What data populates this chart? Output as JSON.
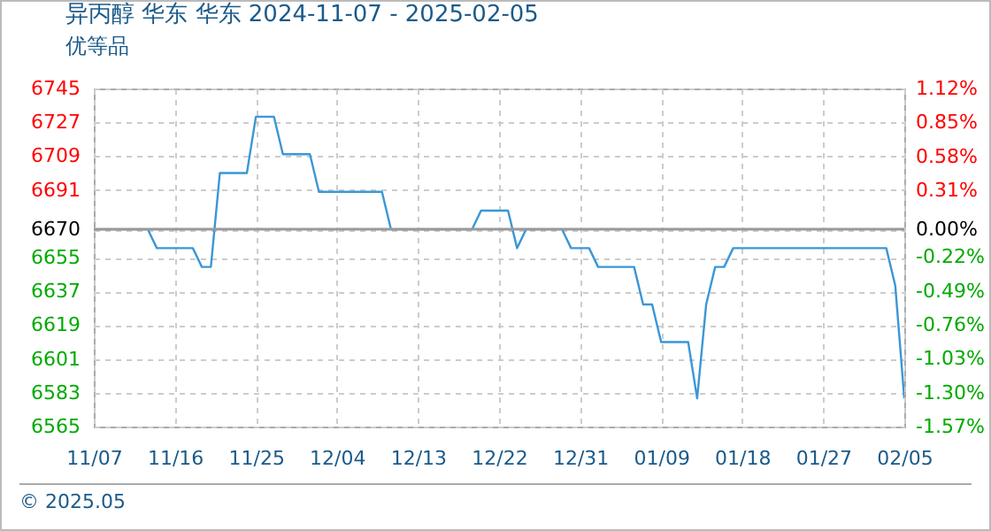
{
  "chart_data": {
    "type": "line",
    "title": "异丙醇 华东 华东 2024-11-07 - 2025-02-05",
    "subtitle": "优等品",
    "x": [
      "2024-11-07",
      "2024-11-13",
      "2024-11-14",
      "2024-11-18",
      "2024-11-19",
      "2024-11-20",
      "2024-11-21",
      "2024-11-24",
      "2024-11-25",
      "2024-11-27",
      "2024-11-28",
      "2024-12-01",
      "2024-12-02",
      "2024-12-09",
      "2024-12-10",
      "2024-12-19",
      "2024-12-20",
      "2024-12-23",
      "2024-12-24",
      "2024-12-25",
      "2024-12-29",
      "2024-12-30",
      "2025-01-01",
      "2025-01-02",
      "2025-01-06",
      "2025-01-07",
      "2025-01-08",
      "2025-01-09",
      "2025-01-12",
      "2025-01-13",
      "2025-01-14",
      "2025-01-15",
      "2025-01-16",
      "2025-01-17",
      "2025-02-03",
      "2025-02-04",
      "2025-02-05"
    ],
    "series": [
      {
        "color": "#3a97d6",
        "values": [
          6670,
          6670,
          6660,
          6660,
          6650,
          6650,
          6700,
          6700,
          6730,
          6730,
          6710,
          6710,
          6690,
          6690,
          6670,
          6670,
          6680,
          6680,
          6660,
          6670,
          6670,
          6660,
          6660,
          6650,
          6650,
          6630,
          6630,
          6610,
          6610,
          6580,
          6630,
          6650,
          6650,
          6660,
          6660,
          6640,
          6580
        ]
      }
    ],
    "xlim": [
      "2024-11-07",
      "2025-02-05"
    ],
    "xticks": [
      {
        "value": "2024-11-07",
        "label": "11/07"
      },
      {
        "value": "2024-11-16",
        "label": "11/16"
      },
      {
        "value": "2024-11-25",
        "label": "11/25"
      },
      {
        "value": "2024-12-04",
        "label": "12/04"
      },
      {
        "value": "2024-12-13",
        "label": "12/13"
      },
      {
        "value": "2024-12-22",
        "label": "12/22"
      },
      {
        "value": "2024-12-31",
        "label": "12/31"
      },
      {
        "value": "2025-01-09",
        "label": "01/09"
      },
      {
        "value": "2025-01-18",
        "label": "01/18"
      },
      {
        "value": "2025-01-27",
        "label": "01/27"
      },
      {
        "value": "2025-02-05",
        "label": "02/05"
      }
    ],
    "ylim": [
      6565,
      6745
    ],
    "yticks": [
      6565,
      6583,
      6601,
      6619,
      6637,
      6655,
      6670,
      6691,
      6709,
      6727,
      6745
    ],
    "y2lim": [
      -1.57,
      1.12
    ],
    "y2ticks": [
      {
        "value": -1.57,
        "label": "-1.57%"
      },
      {
        "value": -1.3,
        "label": "-1.30%"
      },
      {
        "value": -1.03,
        "label": "-1.03%"
      },
      {
        "value": -0.76,
        "label": "-0.76%"
      },
      {
        "value": -0.49,
        "label": "-0.49%"
      },
      {
        "value": -0.22,
        "label": "-0.22%"
      },
      {
        "value": 0,
        "label": "0.00%"
      },
      {
        "value": 0.31,
        "label": "0.31%"
      },
      {
        "value": 0.58,
        "label": "0.58%"
      },
      {
        "value": 0.85,
        "label": "0.85%"
      },
      {
        "value": 1.12,
        "label": "1.12%"
      }
    ],
    "ref_lines": [
      {
        "axis": "y2",
        "value": 0,
        "color": "#999999"
      }
    ],
    "grid": true,
    "annotations": [
      "© 2025.05"
    ]
  }
}
